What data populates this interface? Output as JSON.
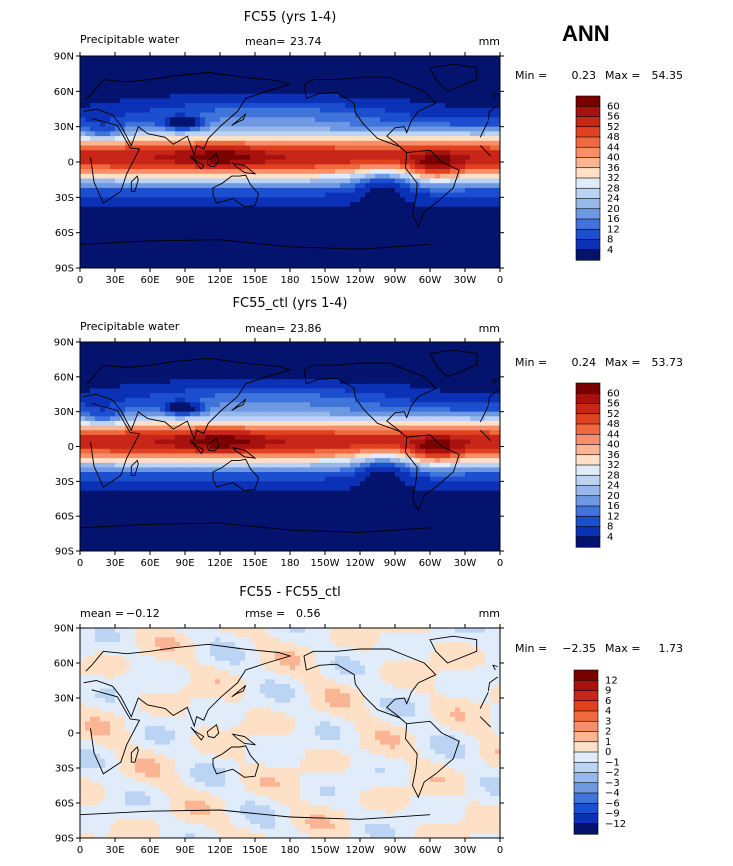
{
  "season": "ANN",
  "lat_ticks": [
    "90N",
    "60N",
    "30N",
    "0",
    "30S",
    "60S",
    "90S"
  ],
  "lon_ticks": [
    "0",
    "30E",
    "60E",
    "90E",
    "120E",
    "150E",
    "180",
    "150W",
    "120W",
    "90W",
    "60W",
    "30W",
    "0"
  ],
  "panels": [
    {
      "title": "FC55 (yrs 1-4)",
      "left_label": "Precipitable water",
      "stat1_label": "mean=",
      "stat1_value": "23.74",
      "stat2_label": "",
      "stat2_value": "",
      "units": "mm",
      "min_label": "Min =",
      "min_value": "0.23",
      "max_label": "Max =",
      "max_value": "54.35",
      "colorbar": {
        "labels": [
          "60",
          "56",
          "52",
          "48",
          "44",
          "40",
          "36",
          "32",
          "28",
          "24",
          "20",
          "16",
          "12",
          "8",
          "4"
        ],
        "colors": [
          "#7a0000",
          "#a8120e",
          "#c9261a",
          "#e0421f",
          "#ef6a3e",
          "#f7906a",
          "#fbb494",
          "#fde0c5",
          "#e0ecfa",
          "#bcd4f4",
          "#98b8ec",
          "#6f98e3",
          "#3f74da",
          "#1c4fd0",
          "#0b31b6",
          "#03136e"
        ]
      }
    },
    {
      "title": "FC55_ctl (yrs 1-4)",
      "left_label": "Precipitable water",
      "stat1_label": "mean=",
      "stat1_value": "23.86",
      "stat2_label": "",
      "stat2_value": "",
      "units": "mm",
      "min_label": "Min =",
      "min_value": "0.24",
      "max_label": "Max =",
      "max_value": "53.73",
      "colorbar": {
        "labels": [
          "60",
          "56",
          "52",
          "48",
          "44",
          "40",
          "36",
          "32",
          "28",
          "24",
          "20",
          "16",
          "12",
          "8",
          "4"
        ],
        "colors": [
          "#7a0000",
          "#a8120e",
          "#c9261a",
          "#e0421f",
          "#ef6a3e",
          "#f7906a",
          "#fbb494",
          "#fde0c5",
          "#e0ecfa",
          "#bcd4f4",
          "#98b8ec",
          "#6f98e3",
          "#3f74da",
          "#1c4fd0",
          "#0b31b6",
          "#03136e"
        ]
      }
    },
    {
      "title": "FC55 - FC55_ctl",
      "left_label": "",
      "stat1_label": "mean =",
      "stat1_value": "−0.12",
      "stat2_label": "rmse =",
      "stat2_value": "0.56",
      "units": "mm",
      "min_label": "Min =",
      "min_value": "−2.35",
      "max_label": "Max =",
      "max_value": "1.73",
      "colorbar": {
        "labels": [
          "12",
          "9",
          "6",
          "4",
          "3",
          "2",
          "1",
          "0",
          "−1",
          "−2",
          "−3",
          "−4",
          "−6",
          "−9",
          "−12"
        ],
        "colors": [
          "#7a0000",
          "#a8120e",
          "#c9261a",
          "#e0421f",
          "#ef6a3e",
          "#f7906a",
          "#fbb494",
          "#fde0c5",
          "#e0ecfa",
          "#bcd4f4",
          "#98b8ec",
          "#6f98e3",
          "#3f74da",
          "#1c4fd0",
          "#0b31b6",
          "#03136e"
        ]
      }
    }
  ],
  "chart_data": [
    {
      "type": "heatmap",
      "title": "FC55 (yrs 1-4)",
      "variable": "Precipitable water",
      "units": "mm",
      "mean": 23.74,
      "min": 0.23,
      "max": 54.35,
      "xlim": [
        0,
        360
      ],
      "ylim": [
        -90,
        90
      ],
      "levels": [
        4,
        8,
        12,
        16,
        20,
        24,
        28,
        32,
        36,
        40,
        44,
        48,
        52,
        56,
        60
      ]
    },
    {
      "type": "heatmap",
      "title": "FC55_ctl (yrs 1-4)",
      "variable": "Precipitable water",
      "units": "mm",
      "mean": 23.86,
      "min": 0.24,
      "max": 53.73,
      "xlim": [
        0,
        360
      ],
      "ylim": [
        -90,
        90
      ],
      "levels": [
        4,
        8,
        12,
        16,
        20,
        24,
        28,
        32,
        36,
        40,
        44,
        48,
        52,
        56,
        60
      ]
    },
    {
      "type": "heatmap",
      "title": "FC55 - FC55_ctl",
      "units": "mm",
      "mean": -0.12,
      "rmse": 0.56,
      "min": -2.35,
      "max": 1.73,
      "xlim": [
        0,
        360
      ],
      "ylim": [
        -90,
        90
      ],
      "levels": [
        -12,
        -9,
        -6,
        -4,
        -3,
        -2,
        -1,
        0,
        1,
        2,
        3,
        4,
        6,
        9,
        12
      ]
    }
  ]
}
